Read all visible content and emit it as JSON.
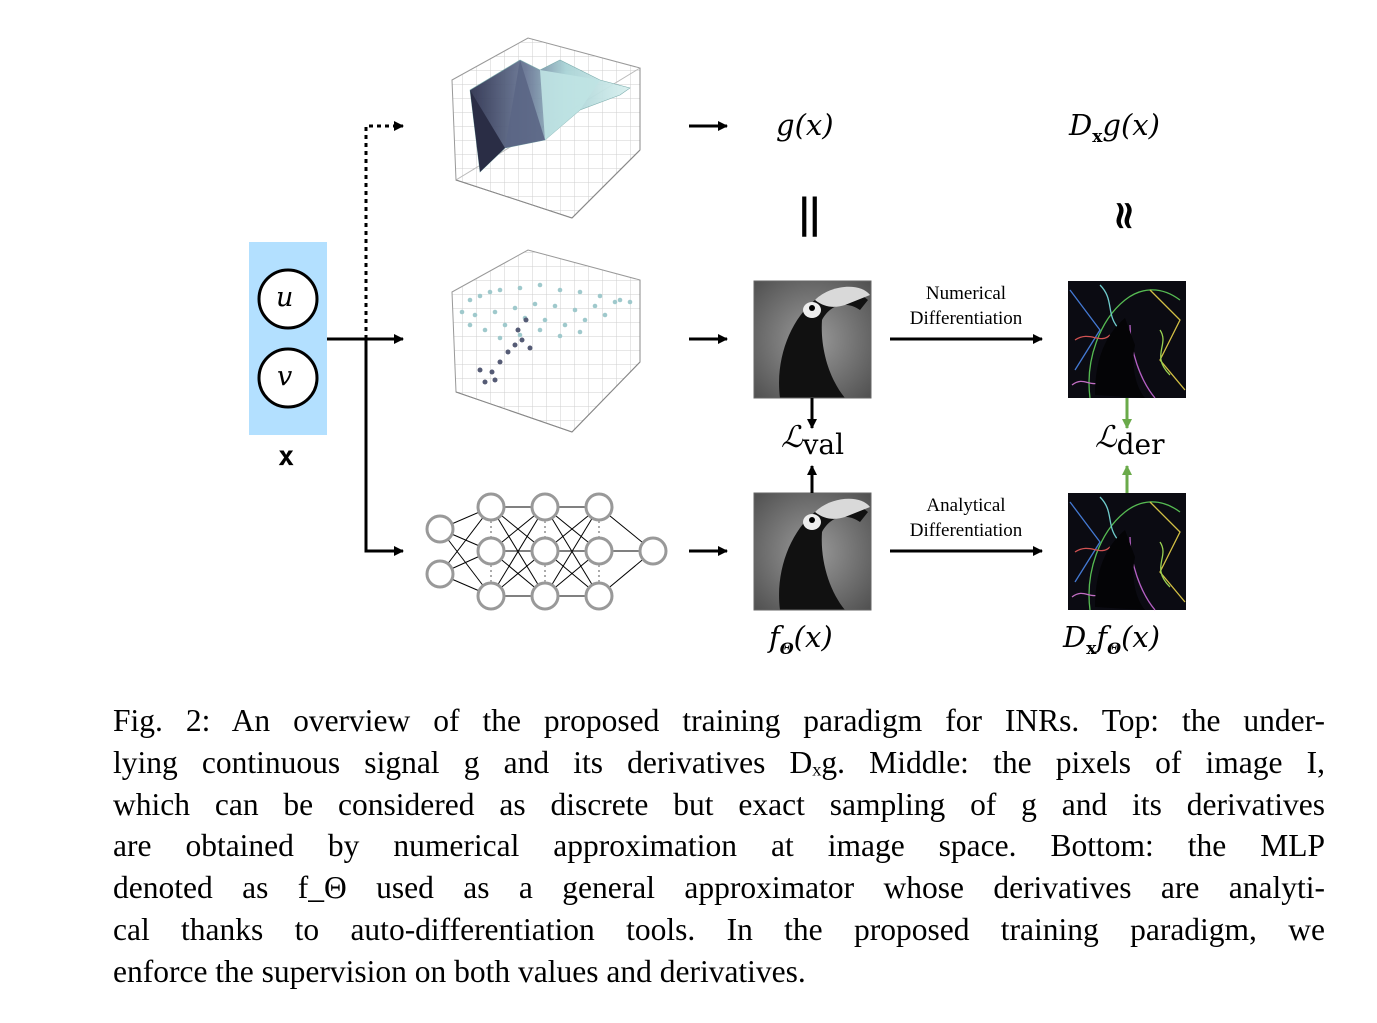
{
  "diagram": {
    "input": {
      "node_u": "u",
      "node_v": "v",
      "label": "x"
    },
    "top": {
      "g_label": "g(x)",
      "dg_label": "D",
      "dg_sub": "x",
      "dg_rest": "g(x)",
      "equal_symbol": "||",
      "approx_symbol": "≈"
    },
    "middle": {
      "arrow_label_line1": "Numerical",
      "arrow_label_line2": "Differentiation",
      "loss_val": "ℒ",
      "loss_val_sub": "val",
      "loss_der": "ℒ",
      "loss_der_sub": "der"
    },
    "bottom": {
      "arrow_label_line1": "Analytical",
      "arrow_label_line2": "Differentiation",
      "f_label": "f",
      "f_sub": "Θ",
      "f_rest": "(x)",
      "df_label": "D",
      "df_sub": "x",
      "df_f": "f",
      "df_f_sub": "Θ",
      "df_rest": "(x)"
    },
    "colors": {
      "input_box": "#b3e0ff",
      "loss_arrow_der": "#6aaa4a",
      "node_stroke_mlp": "#999999"
    }
  },
  "caption": {
    "lines": [
      "Fig. 2: An overview of the proposed training paradigm for INRs. Top: the under-",
      "lying continuous signal g and its derivatives Dₓg. Middle: the pixels of image I,",
      "which can be considered as discrete but exact sampling of g and its derivatives",
      "are obtained by numerical approximation at image space. Bottom: the MLP",
      "denoted as f_Θ used as a general approximator whose derivatives are analyti-",
      "cal thanks to auto-differentiation tools. In the proposed training paradigm, we",
      "enforce the supervision on both values and derivatives."
    ]
  }
}
